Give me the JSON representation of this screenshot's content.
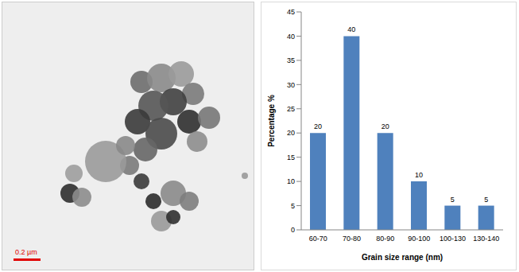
{
  "image": {
    "scale_bar_label": "0.2 µm"
  },
  "chart_data": {
    "type": "bar",
    "x_label": "Grain size range (nm)",
    "y_label": "Percentage %",
    "categories": [
      "60-70",
      "70-80",
      "80-90",
      "90-100",
      "100-130",
      "130-140"
    ],
    "values": [
      20,
      40,
      20,
      10,
      5,
      5
    ],
    "color": "#4f81bd",
    "ylim": [
      0,
      45
    ],
    "yticks": [
      0,
      5,
      10,
      15,
      20,
      25,
      30,
      35,
      40,
      45
    ],
    "grid": false,
    "data_labels": true
  }
}
